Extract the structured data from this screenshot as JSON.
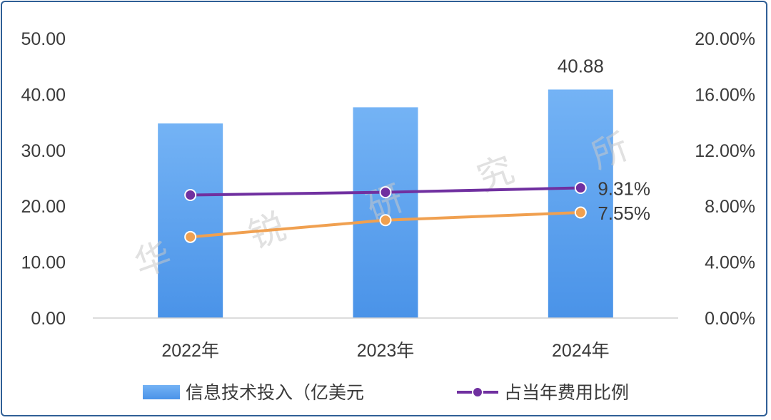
{
  "chart_data": {
    "type": "bar",
    "categories": [
      "2022年",
      "2023年",
      "2024年"
    ],
    "series": [
      {
        "name": "信息技术投入（亿美元",
        "kind": "bar",
        "axis": "left",
        "values": [
          34.8,
          37.7,
          40.88
        ],
        "color": "#5ba3f0"
      },
      {
        "name": "占当年费用比例",
        "kind": "line",
        "axis": "right",
        "values": [
          8.8,
          9.0,
          9.31
        ],
        "color": "#7030a0"
      },
      {
        "name": "",
        "kind": "line",
        "axis": "right",
        "values": [
          5.8,
          7.0,
          7.55
        ],
        "color": "#f0a050"
      }
    ],
    "data_labels": [
      {
        "series": 0,
        "index": 2,
        "text": "40.88"
      },
      {
        "series": 1,
        "index": 2,
        "text": "9.31%"
      },
      {
        "series": 2,
        "index": 2,
        "text": "7.55%"
      }
    ],
    "y_left": {
      "min": 0,
      "max": 50,
      "ticks": [
        "0.00",
        "10.00",
        "20.00",
        "30.00",
        "40.00",
        "50.00"
      ]
    },
    "y_right": {
      "min": 0,
      "max": 20,
      "ticks": [
        "0.00%",
        "4.00%",
        "8.00%",
        "12.00%",
        "16.00%",
        "20.00%"
      ]
    },
    "grid": false,
    "legend_position": "bottom",
    "watermark": [
      "华",
      "锐",
      "研",
      "究",
      "所"
    ]
  }
}
